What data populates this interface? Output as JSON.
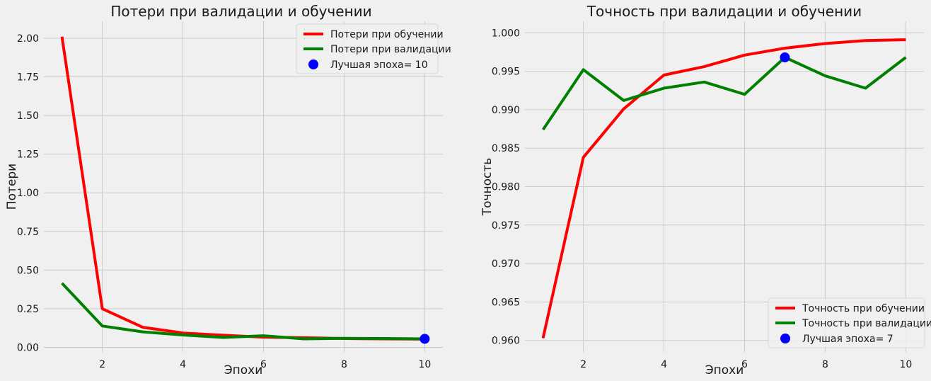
{
  "chart_data": [
    {
      "type": "line",
      "title": "Потери при валидации и обучении",
      "xlabel": "Эпохи",
      "ylabel": "Потери",
      "x": [
        1,
        2,
        3,
        4,
        5,
        6,
        7,
        8,
        9,
        10
      ],
      "xlim": [
        0.55,
        10.45
      ],
      "ylim": [
        -0.03,
        2.11
      ],
      "xticks": [
        2,
        4,
        6,
        8,
        10
      ],
      "xtick_labels": [
        "2",
        "4",
        "6",
        "8",
        "10"
      ],
      "yticks": [
        0,
        0.25,
        0.5,
        0.75,
        1.0,
        1.25,
        1.5,
        1.75,
        2.0
      ],
      "ytick_labels": [
        "0.00",
        "0.25",
        "0.50",
        "0.75",
        "1.00",
        "1.25",
        "1.50",
        "1.75",
        "2.00"
      ],
      "grid": true,
      "legend_position": "top-right",
      "series": [
        {
          "name": "Потери при обучении",
          "color": "#ff0000",
          "values": [
            2.01,
            0.25,
            0.13,
            0.093,
            0.078,
            0.066,
            0.062,
            0.057,
            0.055,
            0.053
          ]
        },
        {
          "name": "Потери при валидации",
          "color": "#008000",
          "values": [
            0.415,
            0.138,
            0.1,
            0.08,
            0.064,
            0.075,
            0.055,
            0.058,
            0.057,
            0.055
          ]
        }
      ],
      "marker": {
        "name": "Лучшая эпоха= 10",
        "color": "#0000ff",
        "x": 10,
        "y": 0.055
      }
    },
    {
      "type": "line",
      "title": "Точность при валидации и обучении",
      "xlabel": "Эпохи",
      "ylabel": "Точность",
      "x": [
        1,
        2,
        3,
        4,
        5,
        6,
        7,
        8,
        9,
        10
      ],
      "xlim": [
        0.55,
        10.45
      ],
      "ylim": [
        0.9585,
        1.0015
      ],
      "xticks": [
        2,
        4,
        6,
        8,
        10
      ],
      "xtick_labels": [
        "2",
        "4",
        "6",
        "8",
        "10"
      ],
      "yticks": [
        0.96,
        0.965,
        0.97,
        0.975,
        0.98,
        0.985,
        0.99,
        0.995,
        1.0
      ],
      "ytick_labels": [
        "0.960",
        "0.965",
        "0.970",
        "0.975",
        "0.980",
        "0.985",
        "0.990",
        "0.995",
        "1.000"
      ],
      "grid": true,
      "legend_position": "bottom-right",
      "series": [
        {
          "name": "Точность при обучении",
          "color": "#ff0000",
          "values": [
            0.9603,
            0.9838,
            0.9901,
            0.9945,
            0.9956,
            0.9971,
            0.998,
            0.9986,
            0.999,
            0.9991
          ]
        },
        {
          "name": "Точность при валидации",
          "color": "#008000",
          "values": [
            0.9874,
            0.9952,
            0.9912,
            0.9928,
            0.9936,
            0.992,
            0.9968,
            0.9944,
            0.9928,
            0.9968
          ]
        }
      ],
      "marker": {
        "name": "Лучшая эпоха= 7",
        "color": "#0000ff",
        "x": 7,
        "y": 0.9968
      }
    }
  ]
}
